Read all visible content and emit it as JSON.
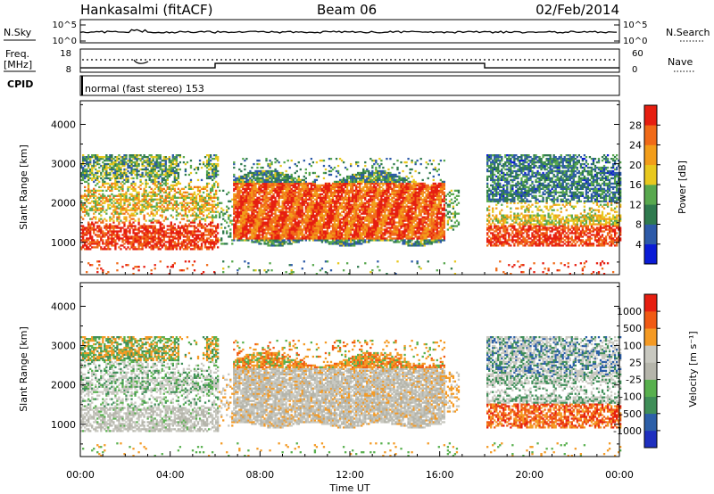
{
  "header": {
    "station": "Hankasalmi (fitACF)",
    "beam": "Beam 06",
    "date": "02/Feb/2014"
  },
  "noise_panel": {
    "left_label": "N.Sky",
    "right_label": "N.Search",
    "left_ticks": [
      "10^5",
      "10^0"
    ],
    "right_ticks": [
      "10^5",
      "10^0"
    ]
  },
  "freq_panel": {
    "left_label_1": "Freq.",
    "left_label_2": "[MHz]",
    "right_label": "Nave",
    "left_ticks": [
      "18",
      "8"
    ],
    "right_ticks": [
      "60",
      "0"
    ],
    "cpid_label": "CPID"
  },
  "mode_text": "normal (fast stereo) 153",
  "power_panel": {
    "ylabel": "Slant Range [km]",
    "yticks": [
      "1000",
      "2000",
      "3000",
      "4000"
    ],
    "colorbar_label": "Power [dB]",
    "colorbar_ticks": [
      "4",
      "8",
      "12",
      "16",
      "20",
      "24",
      "28"
    ]
  },
  "velocity_panel": {
    "ylabel": "Slant Range [km]",
    "yticks": [
      "1000",
      "2000",
      "3000",
      "4000"
    ],
    "colorbar_label": "Velocity [m s⁻¹]",
    "colorbar_ticks": [
      "1000",
      "500",
      "100",
      "25",
      "-25",
      "-100",
      "-500",
      "-1000"
    ]
  },
  "xaxis": {
    "label": "Time UT",
    "ticks": [
      "00:00",
      "04:00",
      "08:00",
      "12:00",
      "16:00",
      "20:00",
      "00:00"
    ]
  },
  "colors": {
    "power_scale": [
      "#0a1bd6",
      "#2d5aa8",
      "#2f7a4e",
      "#58a84e",
      "#e8c81e",
      "#f29d1a",
      "#f06a18",
      "#e61e10"
    ],
    "velocity_scale": [
      "#e61e10",
      "#f05a14",
      "#f49a24",
      "#c8c8c0",
      "#b5b5ab",
      "#58b04e",
      "#3f8e58",
      "#2c5fa8",
      "#1e2fbf"
    ]
  },
  "chart_data": [
    {
      "type": "heatmap",
      "title": "Beam 06",
      "quantity": "Power",
      "unit": "dB",
      "xlabel": "Time UT",
      "ylabel": "Slant Range [km]",
      "xlim": [
        0,
        24
      ],
      "ylim": [
        180,
        4600
      ],
      "colorbar_range": [
        0,
        32
      ],
      "colorbar_ticks": [
        4,
        8,
        12,
        16,
        20,
        24,
        28
      ],
      "data_gap_hours": [
        [
          16.8,
          18.0
        ]
      ],
      "echo_regions": [
        {
          "hours": [
            0,
            6
          ],
          "range_km": [
            800,
            3200
          ],
          "peak_db": 30
        },
        {
          "hours": [
            6.8,
            16.2
          ],
          "range_km": [
            900,
            2800
          ],
          "peak_db": 30
        },
        {
          "hours": [
            18,
            24
          ],
          "range_km": [
            900,
            3200
          ],
          "peak_db": 28
        }
      ]
    },
    {
      "type": "heatmap",
      "quantity": "Velocity",
      "unit": "m s-1",
      "xlabel": "Time UT",
      "ylabel": "Slant Range [km]",
      "xlim": [
        0,
        24
      ],
      "ylim": [
        180,
        4600
      ],
      "colorbar_range": [
        -1000,
        1000
      ],
      "colorbar_ticks": [
        1000,
        500,
        100,
        25,
        -25,
        -100,
        -500,
        -1000
      ],
      "data_gap_hours": [
        [
          16.8,
          18.0
        ]
      ]
    },
    {
      "type": "line",
      "quantity": "Frequency",
      "unit": "MHz",
      "x_hours": [
        0,
        6,
        6,
        18,
        18,
        24
      ],
      "y": [
        10,
        10,
        12,
        12,
        10,
        10
      ],
      "ylim": [
        8,
        18
      ]
    }
  ]
}
